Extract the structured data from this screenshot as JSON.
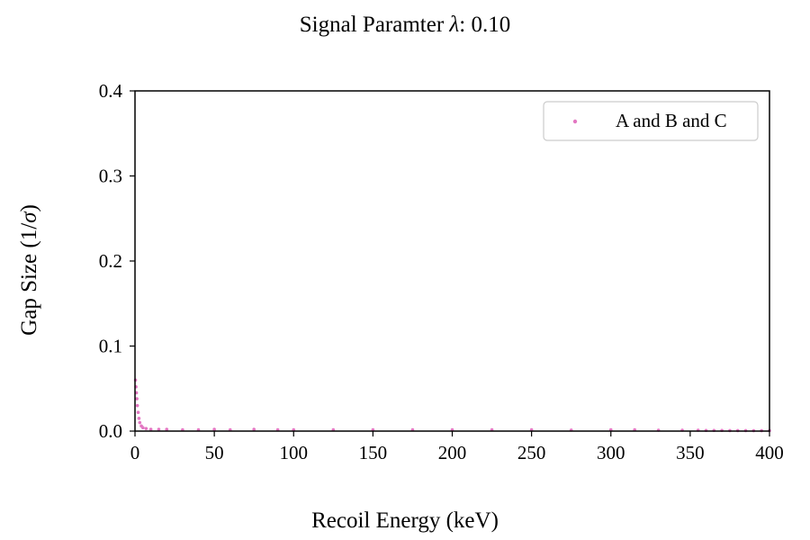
{
  "chart_data": {
    "type": "scatter",
    "title": "Signal Paramter λ:  0.10",
    "title_prefix": "Signal Paramter ",
    "title_symbol": "λ",
    "title_suffix": ":  0.10",
    "xlabel": "Recoil Energy (keV)",
    "ylabel": "Gap Size (1/σ)",
    "ylabel_prefix": "Gap Size (1/",
    "ylabel_symbol": "σ",
    "ylabel_suffix": ")",
    "xlim": [
      0,
      400
    ],
    "ylim": [
      0,
      0.4
    ],
    "xticks": [
      0,
      50,
      100,
      150,
      200,
      250,
      300,
      350,
      400
    ],
    "yticks": [
      0.0,
      0.1,
      0.2,
      0.3,
      0.4
    ],
    "xtick_labels": [
      "0",
      "50",
      "100",
      "150",
      "200",
      "250",
      "300",
      "350",
      "400"
    ],
    "ytick_labels": [
      "0.0",
      "0.1",
      "0.2",
      "0.3",
      "0.4"
    ],
    "grid": false,
    "legend_position": "top-right",
    "series": [
      {
        "name": "A and B and C",
        "color": "#e377c2",
        "x": [
          0.3,
          0.6,
          0.9,
          1.2,
          1.5,
          2,
          2.5,
          3,
          4,
          5,
          7,
          10,
          15,
          20,
          30,
          40,
          50,
          60,
          75,
          90,
          100,
          125,
          150,
          175,
          200,
          225,
          250,
          275,
          300,
          315,
          330,
          345,
          355,
          360,
          365,
          370,
          375,
          380,
          385,
          390,
          395,
          400
        ],
        "y": [
          0.06,
          0.052,
          0.045,
          0.038,
          0.03,
          0.022,
          0.015,
          0.01,
          0.006,
          0.004,
          0.003,
          0.002,
          0.002,
          0.002,
          0.0015,
          0.0015,
          0.002,
          0.0015,
          0.002,
          0.0015,
          0.0015,
          0.0015,
          0.0015,
          0.0015,
          0.0015,
          0.0015,
          0.0015,
          0.0012,
          0.0015,
          0.0015,
          0.001,
          0.001,
          0.001,
          0.0008,
          0.0008,
          0.0008,
          0.0006,
          0.0006,
          0.0006,
          0.0005,
          0.0005,
          0.0005
        ]
      }
    ]
  }
}
